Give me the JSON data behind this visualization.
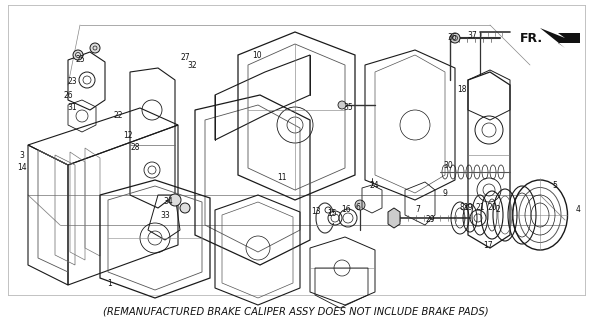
{
  "subtitle": "(REMANUFACTURED BRAKE CALIPER ASSY DOES NOT INCLUDE BRAKE PADS)",
  "subtitle_fontsize": 7.2,
  "background_color": "#ffffff",
  "text_color": "#000000",
  "fig_width": 5.92,
  "fig_height": 3.2,
  "dpi": 100
}
